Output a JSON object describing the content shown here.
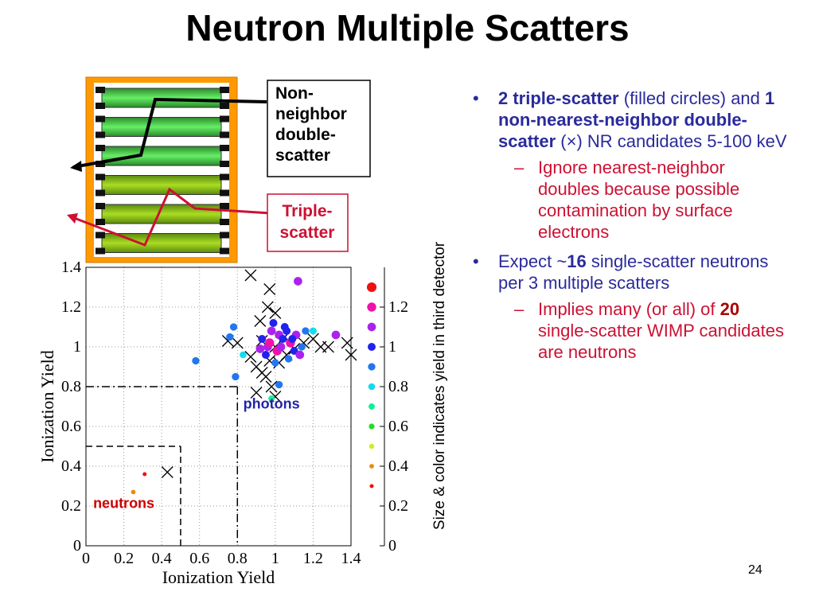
{
  "title": "Neutron Multiple Scatters",
  "page_number": "24",
  "diagram": {
    "double_label": [
      "Non-",
      "neighbor",
      "double-",
      "scatter"
    ],
    "triple_label": [
      "Triple-",
      "scatter"
    ]
  },
  "bullets": [
    {
      "parts": [
        "2 triple-scatter",
        " (filled circles) and ",
        "1 non-nearest-neighbor double-scatter",
        " (×) NR candidates 5-100 keV"
      ],
      "sub": [
        [
          "Ignore nearest-neighbor doubles because possible contamination by surface electrons"
        ]
      ]
    },
    {
      "parts": [
        "Expect ~",
        "16",
        " single-scatter neutrons per 3 multiple scatters"
      ],
      "sub": [
        [
          "Implies many (or all) of ",
          "20",
          " single-scatter WIMP candidates are neutrons"
        ]
      ]
    }
  ],
  "chart_data": {
    "type": "scatter",
    "xlabel": "Ionization Yield",
    "ylabel": "Ionization Yield",
    "y2label": "Size & color indicates yield in third detector",
    "xlim": [
      0,
      1.4
    ],
    "ylim": [
      0,
      1.4
    ],
    "y2lim": [
      0,
      1.4
    ],
    "xticks": [
      0,
      0.2,
      0.4,
      0.6,
      0.8,
      1,
      1.2,
      1.4
    ],
    "yticks": [
      0,
      0.2,
      0.4,
      0.6,
      0.8,
      1,
      1.2,
      1.4
    ],
    "y2ticks": [
      0,
      0.2,
      0.4,
      0.6,
      0.8,
      1,
      1.2
    ],
    "grid": true,
    "colorbar": {
      "values": [
        1.3,
        1.2,
        1.1,
        1.0,
        0.9,
        0.8,
        0.7,
        0.6,
        0.5,
        0.4,
        0.3
      ],
      "colors": [
        "#ee1111",
        "#ee11aa",
        "#aa22ee",
        "#2222ee",
        "#2277ee",
        "#11ddee",
        "#11ee99",
        "#22dd22",
        "#ccee22",
        "#ee8811",
        "#ee1111"
      ]
    },
    "regions": [
      {
        "x": 0.5,
        "y": 0.5,
        "style": "dashed"
      },
      {
        "x": 0.8,
        "y": 0.8,
        "style": "dashdot"
      }
    ],
    "annotations": [
      {
        "text": "photons",
        "x": 0.98,
        "y": 0.69,
        "color": "#2222aa"
      },
      {
        "text": "neutrons",
        "x": 0.2,
        "y": 0.19,
        "color": "#cc0000"
      }
    ],
    "points": {
      "x": [
        0.31,
        0.25,
        1.12,
        0.58,
        0.78,
        0.76,
        0.79,
        0.83,
        0.98,
        1.02,
        1.32,
        1.2,
        0.93,
        0.96,
        0.99,
        1.02,
        1.05,
        1.08,
        1.11,
        1.14,
        0.95,
        0.98,
        1.01,
        1.04,
        1.07,
        1.1,
        0.92,
        1.0,
        1.06,
        1.13,
        0.97,
        1.03,
        1.09,
        1.16
      ],
      "values": [
        0.36,
        0.27,
        1.33,
        0.93,
        1.1,
        1.05,
        0.85,
        0.96,
        0.74,
        0.81,
        1.06,
        1.08,
        1.04,
        1.0,
        1.12,
        1.06,
        1.1,
        1.02,
        1.06,
        1.0,
        0.96,
        1.08,
        0.98,
        1.04,
        0.94,
        0.98,
        0.99,
        0.92,
        1.08,
        0.96,
        1.02,
        1.0,
        1.04,
        1.08
      ],
      "z": [
        0.3,
        0.4,
        1.1,
        0.9,
        0.9,
        0.9,
        0.9,
        0.8,
        0.7,
        0.9,
        1.1,
        0.85,
        1.0,
        1.1,
        1.0,
        1.1,
        1.0,
        1.2,
        1.1,
        0.9,
        1.0,
        1.1,
        1.2,
        1.0,
        0.9,
        1.0,
        1.1,
        0.9,
        1.0,
        1.1,
        1.2,
        1.1,
        1.0,
        0.9
      ]
    },
    "crosses": {
      "x": [
        0.87,
        0.97,
        0.96,
        1.0,
        0.92,
        0.75,
        0.8,
        0.87,
        0.9,
        0.93,
        0.95,
        0.97,
        1.02,
        1.06,
        1.1,
        1.15,
        1.2,
        1.24,
        1.28,
        1.38,
        1.4,
        1.0,
        0.98,
        0.9,
        0.43,
        1.05,
        0.93,
        1.0
      ],
      "values": [
        1.36,
        1.29,
        1.2,
        1.17,
        1.13,
        1.03,
        1.02,
        0.95,
        0.9,
        0.87,
        0.85,
        0.93,
        0.92,
        0.96,
        0.99,
        1.02,
        1.04,
        1.0,
        1.0,
        1.02,
        0.96,
        0.75,
        0.8,
        0.77,
        0.37,
        1.05,
        1.03,
        1.0
      ]
    }
  }
}
